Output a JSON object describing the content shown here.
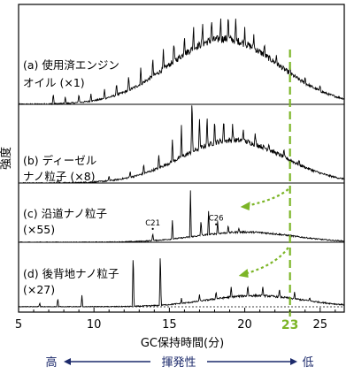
{
  "chart_data": {
    "type": "line",
    "xlabel": "GC保持時間(分)",
    "ylabel": "強度",
    "xlim": [
      5,
      26.6
    ],
    "x_ticks": [
      "5",
      "10",
      "15",
      "20",
      "25"
    ],
    "highlight": {
      "x": 23,
      "label": "23",
      "color": "#7cb527"
    },
    "volatility": {
      "high": "高",
      "axis_label": "揮発性",
      "low": "低",
      "color": "#1c2a6b"
    },
    "panels": [
      {
        "label_line1": "(a) 使用済エンジン",
        "label_line2": "オイル (×1)",
        "hump_center": 18.6,
        "hump_width": 3.6,
        "hump_height": 0.74,
        "peaks": [
          {
            "x": 7.3,
            "h": 0.12
          },
          {
            "x": 8.1,
            "h": 0.08
          },
          {
            "x": 9.0,
            "h": 0.1
          },
          {
            "x": 9.8,
            "h": 0.09
          },
          {
            "x": 10.7,
            "h": 0.11
          },
          {
            "x": 11.5,
            "h": 0.14
          },
          {
            "x": 12.3,
            "h": 0.16
          },
          {
            "x": 13.1,
            "h": 0.18
          },
          {
            "x": 13.9,
            "h": 0.2
          },
          {
            "x": 14.6,
            "h": 0.2
          },
          {
            "x": 15.3,
            "h": 0.22
          },
          {
            "x": 16.0,
            "h": 0.24
          },
          {
            "x": 16.6,
            "h": 0.26
          },
          {
            "x": 17.2,
            "h": 0.22
          },
          {
            "x": 17.8,
            "h": 0.25
          },
          {
            "x": 18.4,
            "h": 0.24
          },
          {
            "x": 18.9,
            "h": 0.28
          },
          {
            "x": 19.4,
            "h": 0.22
          },
          {
            "x": 20.0,
            "h": 0.18
          },
          {
            "x": 20.6,
            "h": 0.15
          },
          {
            "x": 21.3,
            "h": 0.12
          },
          {
            "x": 22.1,
            "h": 0.1
          },
          {
            "x": 23.0,
            "h": 0.09
          },
          {
            "x": 24.0,
            "h": 0.07
          },
          {
            "x": 25.0,
            "h": 0.06
          }
        ]
      },
      {
        "label_line1": "(b) ディーゼル",
        "label_line2": "ナノ粒子 (×8)",
        "hump_center": 19.2,
        "hump_width": 3.4,
        "hump_height": 0.55,
        "peaks": [
          {
            "x": 7.6,
            "h": 0.05
          },
          {
            "x": 11.0,
            "h": 0.06
          },
          {
            "x": 12.4,
            "h": 0.08
          },
          {
            "x": 13.3,
            "h": 0.12
          },
          {
            "x": 14.3,
            "h": 0.16
          },
          {
            "x": 15.2,
            "h": 0.3
          },
          {
            "x": 15.8,
            "h": 0.4
          },
          {
            "x": 16.5,
            "h": 0.72
          },
          {
            "x": 17.0,
            "h": 0.4
          },
          {
            "x": 17.5,
            "h": 0.38
          },
          {
            "x": 18.0,
            "h": 0.3
          },
          {
            "x": 18.6,
            "h": 0.28
          },
          {
            "x": 19.2,
            "h": 0.22
          },
          {
            "x": 19.9,
            "h": 0.18
          },
          {
            "x": 20.7,
            "h": 0.14
          },
          {
            "x": 21.6,
            "h": 0.1
          },
          {
            "x": 22.6,
            "h": 0.08
          },
          {
            "x": 23.6,
            "h": 0.05
          }
        ]
      },
      {
        "label_line1": "(c) 沿道ナノ粒子",
        "label_line2": "(×55)",
        "hump_center": 20.0,
        "hump_width": 3.2,
        "hump_height": 0.18,
        "peaks": [
          {
            "x": 13.9,
            "h": 0.14
          },
          {
            "x": 15.2,
            "h": 0.34
          },
          {
            "x": 16.4,
            "h": 0.82
          },
          {
            "x": 17.1,
            "h": 0.28
          },
          {
            "x": 17.6,
            "h": 0.42
          },
          {
            "x": 18.2,
            "h": 0.22
          },
          {
            "x": 18.9,
            "h": 0.12
          },
          {
            "x": 19.6,
            "h": 0.08
          }
        ],
        "annotations": [
          {
            "x": 13.9,
            "label": "C21"
          },
          {
            "x": 18.1,
            "label": "C26"
          }
        ]
      },
      {
        "label_line1": "(d) 後背地ナノ粒子",
        "label_line2": "(×27)",
        "hump_center": 20.7,
        "hump_width": 3.2,
        "hump_height": 0.18,
        "peaks": [
          {
            "x": 6.4,
            "h": 0.06
          },
          {
            "x": 7.6,
            "h": 0.14
          },
          {
            "x": 9.2,
            "h": 0.18
          },
          {
            "x": 12.6,
            "h": 0.9
          },
          {
            "x": 14.4,
            "h": 0.9
          },
          {
            "x": 15.8,
            "h": 0.08
          },
          {
            "x": 17.0,
            "h": 0.1
          },
          {
            "x": 18.1,
            "h": 0.12
          },
          {
            "x": 19.1,
            "h": 0.16
          },
          {
            "x": 20.2,
            "h": 0.18
          },
          {
            "x": 21.2,
            "h": 0.16
          },
          {
            "x": 22.3,
            "h": 0.12
          },
          {
            "x": 23.3,
            "h": 0.1
          },
          {
            "x": 24.3,
            "h": 0.06
          }
        ]
      }
    ]
  }
}
